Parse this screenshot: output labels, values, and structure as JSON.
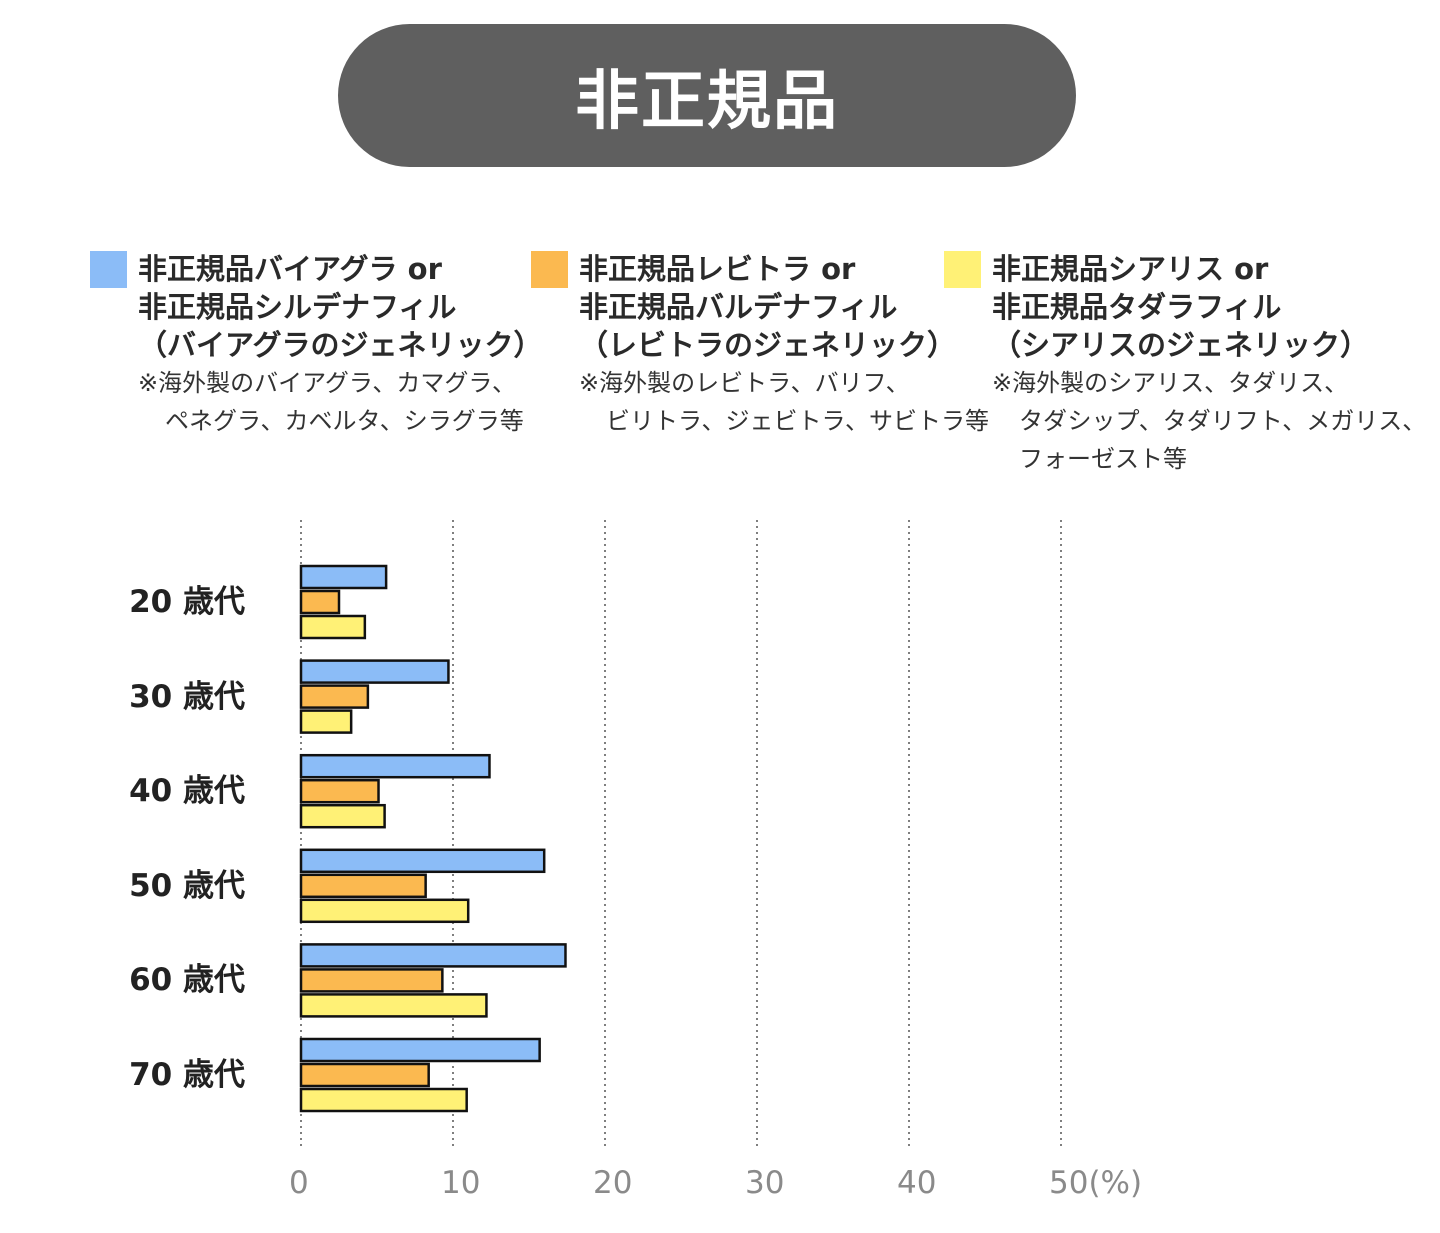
{
  "title": "非正規品",
  "legend": [
    {
      "color": "#8bbcf7",
      "lines": [
        "非正規品バイアグラ or",
        "非正規品シルデナフィル",
        "（バイアグラのジェネリック）"
      ],
      "notes": [
        "※海外製のバイアグラ、カマグラ、",
        "ペネグラ、カベルタ、シラグラ等"
      ]
    },
    {
      "color": "#fbb950",
      "lines": [
        "非正規品レビトラ or",
        "非正規品バルデナフィル",
        "（レビトラのジェネリック）"
      ],
      "notes": [
        "※海外製のレビトラ、バリフ、",
        "ビリトラ、ジェビトラ、サビトラ等"
      ]
    },
    {
      "color": "#fff176",
      "lines": [
        "非正規品シアリス or",
        "非正規品タダラフィル",
        "（シアリスのジェネリック）"
      ],
      "notes": [
        "※海外製のシアリス、タダリス、",
        "タダシップ、タダリフト、メガリス、",
        "フォーゼスト等"
      ]
    }
  ],
  "chart_data": {
    "type": "bar",
    "orientation": "horizontal",
    "categories": [
      "20 歳代",
      "30 歳代",
      "40 歳代",
      "50 歳代",
      "60 歳代",
      "70 歳代"
    ],
    "series": [
      {
        "name": "非正規品バイアグラ or 非正規品シルデナフィル",
        "color": "#8bbcf7",
        "values": [
          5.6,
          9.7,
          12.4,
          16.0,
          17.4,
          15.7
        ]
      },
      {
        "name": "非正規品レビトラ or 非正規品バルデナフィル",
        "color": "#fbb950",
        "values": [
          2.5,
          4.4,
          5.1,
          8.2,
          9.3,
          8.4
        ]
      },
      {
        "name": "非正規品シアリス or 非正規品タダラフィル",
        "color": "#fff176",
        "values": [
          4.2,
          3.3,
          5.5,
          11.0,
          12.2,
          10.9
        ]
      }
    ],
    "xlim": [
      0,
      50
    ],
    "xticks": [
      "0",
      "10",
      "20",
      "30",
      "40",
      "50(%)"
    ],
    "grid": "vertical dotted",
    "legend_position": "top"
  }
}
